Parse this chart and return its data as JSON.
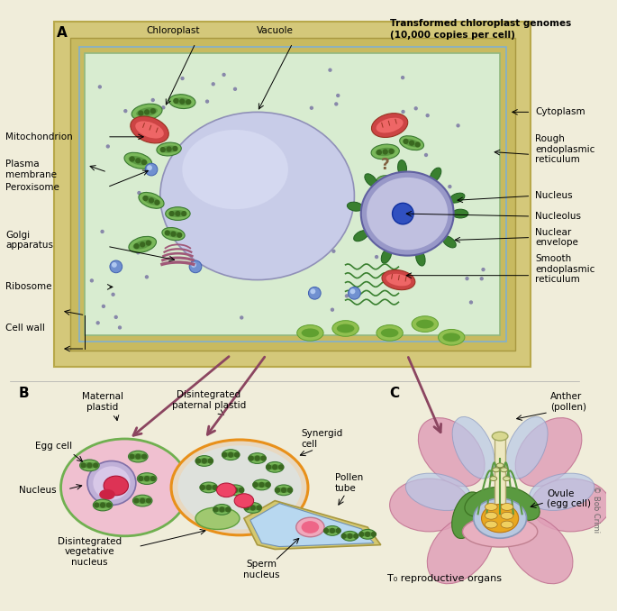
{
  "bg_color": "#f0edda",
  "panel_A_label": "A",
  "panel_B_label": "B",
  "panel_C_label": "C",
  "credit": "© Bob Crimi",
  "colors": {
    "cell_wall_outer": "#d4c87a",
    "cell_wall_mid": "#c8ba60",
    "cytoplasm_bg": "#d8ecd0",
    "cytoplasm_border": "#90b880",
    "plasma_mem": "#80b0d0",
    "vacuole": "#c8cce8",
    "vacuole_border": "#9090b8",
    "chloro_outer": "#7ab85a",
    "chloro_border": "#3a7a30",
    "chloro_inner": "#5a9840",
    "chloro_dot": "#3a6820",
    "mito_outer": "#cc4444",
    "mito_border": "#993322",
    "mito_inner": "#ee6666",
    "nuc_env": "#9898c8",
    "nuc_env_border": "#6060a0",
    "nuc_int": "#c0c0e0",
    "nucleolus": "#3050c0",
    "nucleolus_border": "#1030a0",
    "er_green": "#3a8030",
    "er_border": "#206020",
    "golgi": "#a05878",
    "vesicle": "#7090d0",
    "vesicle_border": "#4060b0",
    "vesicle_hi": "#b0c8f0",
    "cell_chloro": "#90c050",
    "cell_chloro_border": "#60a030",
    "arrow_black": "#000000",
    "arrow_brown": "#8b4560",
    "egg_fill": "#f0c0d0",
    "egg_border": "#70b050",
    "egg_nuc_fill": "#c0b0d8",
    "egg_nuc_border": "#8070a8",
    "red_blob": "#dd3355",
    "red_blob_border": "#aa1133",
    "syn_fill": "#e8d8c0",
    "syn_border": "#e8901a",
    "syn_inner": "#d8e8f0",
    "pt_fill": "#d4c870",
    "pt_border": "#a89840",
    "pt_inner": "#b8d8f0",
    "pt_inner_border": "#7090b0",
    "sperm_fill": "#f0a8bc",
    "sperm_border": "#c07890",
    "petal_pink": "#e0a0b8",
    "petal_pink_border": "#c07090",
    "petal_blue": "#b8c8e8",
    "petal_blue_border": "#8898c0",
    "sepal_green": "#5a9a40",
    "sepal_border": "#3a7020",
    "base_fill": "#e8b0c0",
    "base_border": "#c08090",
    "ovule_bg": "#b8c8e0",
    "ovule_bg_border": "#8898b8",
    "ovule_int": "#e8a820",
    "ovule_int_border": "#c07810",
    "ovule_cell": "#f0d060",
    "ovule_cell_border": "#a07020",
    "style_fill": "#ede8c0",
    "style_border": "#b0a870",
    "stamen_green": "#5a9a40",
    "anther_fill": "#d8e0a0",
    "anther_border": "#808840"
  }
}
